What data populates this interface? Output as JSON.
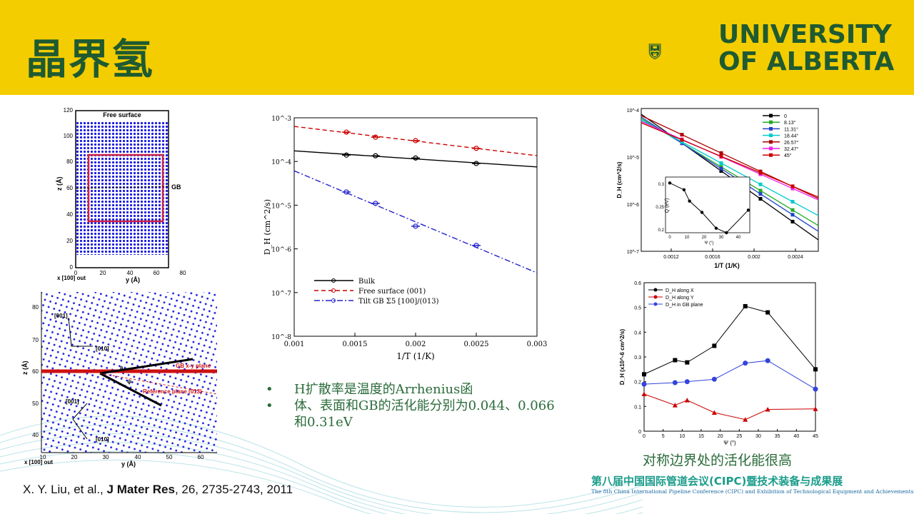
{
  "slide_title": "晶界氢",
  "logo_text": {
    "line1": "UNIVERSITY",
    "line2": "OF ALBERTA"
  },
  "bullets": [
    "H扩散率是温度的Arrhenius函",
    "体、表面和GB的活化能分别为0.044、0.066和0.31eV"
  ],
  "caption": "对称边界处的活化能很高",
  "reference": {
    "authors": "X. Y. Liu, et al., ",
    "journal": "J Mater Res",
    "rest": ", 26, 2735-2743, 2011"
  },
  "conference": {
    "cn": "第八届中国国际管道会议(CIPC)暨技术装备与成果展",
    "en": "The 8th China International Pipeline Conference (CIPC) and Exhibition of Technological Equipment and Achievements"
  },
  "colors": {
    "header_bg": "#f3cd00",
    "brand_green": "#1f5a31"
  },
  "atom_panel": {
    "label_top": "Free surface",
    "label_gb": "GB",
    "xlabel": "y (Å)",
    "xlabel_left": "x [100] out",
    "ylabel": "z (Å)",
    "xticks": [
      "0",
      "20",
      "40",
      "60",
      "80"
    ],
    "yticks": [
      "120",
      "100",
      "80",
      "60",
      "40",
      "20",
      "0"
    ]
  },
  "gb_panel": {
    "labels": [
      "[001]",
      "[010]",
      "[001]",
      "[010]",
      "GB x-y plane",
      "Reference plane (013)"
    ],
    "angle_label": "θ",
    "psi_label": "ψ",
    "xlabel": "y (Å)",
    "xlabel_left": "x [100] out",
    "ylabel": "z (Å)",
    "xticks": [
      "10",
      "20",
      "30",
      "40",
      "50",
      "60"
    ],
    "yticks": [
      "80",
      "70",
      "60",
      "50",
      "40"
    ]
  },
  "chart_data": [
    {
      "type": "line",
      "xlabel": "1/T (1/K)",
      "ylabel": "D_H (cm^2/s)",
      "xlim": [
        0.001,
        0.003
      ],
      "ylim_log10": [
        -8,
        -3
      ],
      "x_ticks": [
        "0.001",
        "0.0015",
        "0.002",
        "0.0025",
        "0.003"
      ],
      "y_ticks": [
        "10^-3",
        "10^-4",
        "10^-5",
        "10^-6",
        "10^-7",
        "10^-8"
      ],
      "legend_position": "bottom-left",
      "series": [
        {
          "name": "Bulk",
          "color": "#000000",
          "x": [
            0.00143,
            0.00167,
            0.002,
            0.0025
          ],
          "y": [
            0.00014,
            0.000135,
            0.00012,
            9e-05
          ]
        },
        {
          "name": "Free surface (001)",
          "color": "#cc0000",
          "x": [
            0.00143,
            0.00167,
            0.002,
            0.0025
          ],
          "y": [
            0.00047,
            0.00036,
            0.0003,
            0.0002
          ]
        },
        {
          "name": "Tilt GB Σ5 [100]/(013)",
          "color": "#2222cc",
          "x": [
            0.00143,
            0.00167,
            0.002,
            0.0025
          ],
          "y": [
            2e-05,
            1.1e-05,
            3.3e-06,
            1.2e-06
          ]
        }
      ]
    },
    {
      "type": "line",
      "xlabel": "1/T (1/K)",
      "ylabel": "D_H (cm^2/s)",
      "x_ticks": [
        "0.0012",
        "0.0016",
        "0.002",
        "0.0024"
      ],
      "y_ticks": [
        "10^-4",
        "10^-5",
        "10^-6",
        "10^-7"
      ],
      "legend_position": "top-right",
      "series": [
        {
          "name": "0",
          "color": "#000000"
        },
        {
          "name": "8.13°",
          "color": "#22aa22"
        },
        {
          "name": "11.31°",
          "color": "#2244cc"
        },
        {
          "name": "18.44°",
          "color": "#00cccc"
        },
        {
          "name": "26.57°",
          "color": "#aa0000"
        },
        {
          "name": "32.47°",
          "color": "#ee22ee"
        },
        {
          "name": "45°",
          "color": "#cc0000"
        }
      ],
      "inset": {
        "ylabel": "Q (eV)",
        "xlabel": "Ψ (°)",
        "x_ticks": [
          "0",
          "10",
          "20",
          "30",
          "40"
        ],
        "y_ticks": [
          "0.3",
          "0.25",
          "0.2"
        ],
        "x": [
          0,
          8.13,
          11.31,
          18.44,
          26.57,
          32.47,
          45
        ],
        "y": [
          0.31,
          0.295,
          0.27,
          0.245,
          0.21,
          0.2,
          0.25
        ]
      }
    },
    {
      "type": "line",
      "xlabel": "Ψ (°)",
      "ylabel": "D_H (x10^-6 cm^2/s)",
      "xlim": [
        0,
        45
      ],
      "ylim": [
        0,
        0.6
      ],
      "x_ticks": [
        "0",
        "5",
        "10",
        "15",
        "20",
        "25",
        "30",
        "35",
        "40",
        "45"
      ],
      "y_ticks": [
        "0",
        "0.1",
        "0.2",
        "0.3",
        "0.4",
        "0.5",
        "0.6"
      ],
      "legend_position": "top-left",
      "series": [
        {
          "name": "D_H along X",
          "color": "#000000",
          "x": [
            0,
            8.13,
            11.31,
            18.44,
            26.57,
            32.47,
            45
          ],
          "y": [
            0.23,
            0.287,
            0.278,
            0.345,
            0.505,
            0.48,
            0.25
          ]
        },
        {
          "name": "D_H along Y",
          "color": "#cc0000",
          "x": [
            0,
            8.13,
            11.31,
            18.44,
            26.57,
            32.47,
            45
          ],
          "y": [
            0.15,
            0.105,
            0.125,
            0.075,
            0.047,
            0.088,
            0.09
          ]
        },
        {
          "name": "D_H in GB plane",
          "color": "#3344dd",
          "x": [
            0,
            8.13,
            11.31,
            18.44,
            26.57,
            32.47,
            45
          ],
          "y": [
            0.19,
            0.196,
            0.2,
            0.21,
            0.275,
            0.285,
            0.17
          ]
        }
      ]
    }
  ]
}
